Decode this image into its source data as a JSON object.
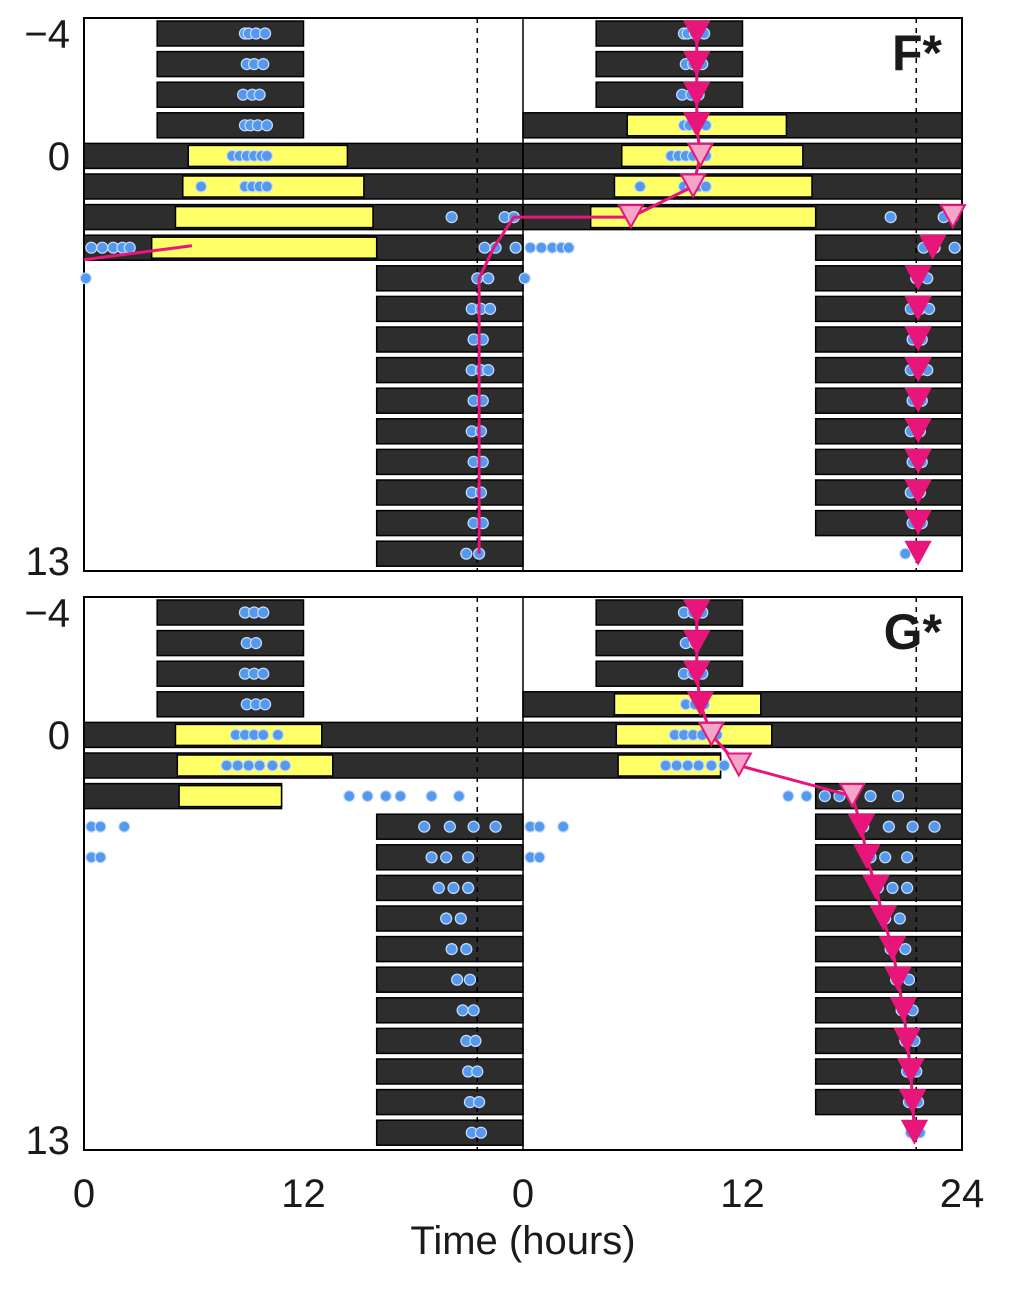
{
  "chart_data": [
    {
      "type": "actogram",
      "panel_label": "F*",
      "xlabel": "Time (hours)",
      "y_tick_labels": [
        "−4",
        "0",
        "13"
      ],
      "ylim": [
        -4,
        13
      ],
      "x_tick_labels": [
        "0",
        "12",
        "0",
        "12",
        "24"
      ],
      "xlim": [
        0,
        48
      ],
      "double_plotted": true,
      "dashed_reference_hour": 21.5,
      "rows": [
        {
          "day": -4,
          "bar": [
            4,
            12
          ],
          "light": null
        },
        {
          "day": -3,
          "bar": [
            4,
            12
          ],
          "light": null
        },
        {
          "day": -2,
          "bar": [
            4,
            12
          ],
          "light": null
        },
        {
          "day": -1,
          "bar": [
            4,
            12
          ],
          "light": null
        },
        {
          "day": 0,
          "bar": [
            0,
            24
          ],
          "light": [
            5.7,
            14.4
          ]
        },
        {
          "day": 1,
          "bar": [
            0,
            24
          ],
          "light": [
            5.4,
            15.3
          ]
        },
        {
          "day": 2,
          "bar": [
            0,
            24
          ],
          "light": [
            5.0,
            15.8
          ]
        },
        {
          "day": 3,
          "bar": [
            0,
            24
          ],
          "light": [
            3.7,
            16.0
          ]
        },
        {
          "day": 4,
          "bar": [
            16,
            24
          ],
          "light": null
        },
        {
          "day": 5,
          "bar": [
            16,
            24
          ],
          "light": null
        },
        {
          "day": 6,
          "bar": [
            16,
            24
          ],
          "light": null
        },
        {
          "day": 7,
          "bar": [
            16,
            24
          ],
          "light": null
        },
        {
          "day": 8,
          "bar": [
            16,
            24
          ],
          "light": null
        },
        {
          "day": 9,
          "bar": [
            16,
            24
          ],
          "light": null
        },
        {
          "day": 10,
          "bar": [
            16,
            24
          ],
          "light": null
        },
        {
          "day": 11,
          "bar": [
            16,
            24
          ],
          "light": null
        },
        {
          "day": 12,
          "bar": [
            16,
            24
          ],
          "light": null
        },
        {
          "day": 13,
          "bar": [
            16,
            24
          ],
          "light": null
        }
      ],
      "onsets": [
        {
          "day": -4,
          "hour": 9.5
        },
        {
          "day": -3,
          "hour": 9.5
        },
        {
          "day": -2,
          "hour": 9.5
        },
        {
          "day": -1,
          "hour": 9.5
        },
        {
          "day": 0,
          "hour": 9.7,
          "open": true
        },
        {
          "day": 1,
          "hour": 9.3,
          "open": true
        },
        {
          "day": 2,
          "hour": 5.9,
          "open": true
        },
        {
          "day": 2,
          "hour": 23.5,
          "open": true
        },
        {
          "day": 3,
          "hour": 22.4
        },
        {
          "day": 4,
          "hour": 21.6
        },
        {
          "day": 5,
          "hour": 21.6
        },
        {
          "day": 6,
          "hour": 21.6
        },
        {
          "day": 7,
          "hour": 21.6
        },
        {
          "day": 8,
          "hour": 21.6
        },
        {
          "day": 9,
          "hour": 21.6
        },
        {
          "day": 10,
          "hour": 21.6
        },
        {
          "day": 11,
          "hour": 21.6
        },
        {
          "day": 12,
          "hour": 21.6
        },
        {
          "day": 13,
          "hour": 21.6
        }
      ],
      "onset_line_hours": [
        [
          33.5,
          -4
        ],
        [
          33.5,
          -3
        ],
        [
          33.5,
          -2
        ],
        [
          33.5,
          -1
        ],
        [
          33.7,
          0
        ],
        [
          33.3,
          1
        ],
        [
          29.9,
          2
        ],
        [
          23.5,
          2
        ],
        [
          22.4,
          3
        ],
        [
          21.6,
          4
        ],
        [
          21.6,
          5
        ],
        [
          21.6,
          6
        ],
        [
          21.6,
          7
        ],
        [
          21.6,
          8
        ],
        [
          21.6,
          9
        ],
        [
          21.6,
          10
        ],
        [
          21.6,
          11
        ],
        [
          21.6,
          12
        ],
        [
          21.6,
          13
        ]
      ],
      "left_stub": {
        "day": 3,
        "from_hour": 0,
        "to_hour": 5.9
      },
      "activity_points": [
        {
          "day": -4,
          "hour": 8.8
        },
        {
          "day": -4,
          "hour": 9.0
        },
        {
          "day": -4,
          "hour": 9.4
        },
        {
          "day": -4,
          "hour": 9.9
        },
        {
          "day": -3,
          "hour": 8.9
        },
        {
          "day": -3,
          "hour": 9.3
        },
        {
          "day": -3,
          "hour": 9.8
        },
        {
          "day": -2,
          "hour": 8.7
        },
        {
          "day": -2,
          "hour": 9.2
        },
        {
          "day": -2,
          "hour": 9.6
        },
        {
          "day": -1,
          "hour": 8.8
        },
        {
          "day": -1,
          "hour": 9.1
        },
        {
          "day": -1,
          "hour": 9.5
        },
        {
          "day": -1,
          "hour": 10.0
        },
        {
          "day": 0,
          "hour": 8.1
        },
        {
          "day": 0,
          "hour": 8.5
        },
        {
          "day": 0,
          "hour": 8.9
        },
        {
          "day": 0,
          "hour": 9.3
        },
        {
          "day": 0,
          "hour": 9.7
        },
        {
          "day": 0,
          "hour": 10.0
        },
        {
          "day": 1,
          "hour": 6.4
        },
        {
          "day": 1,
          "hour": 8.8
        },
        {
          "day": 1,
          "hour": 9.2
        },
        {
          "day": 1,
          "hour": 9.6
        },
        {
          "day": 1,
          "hour": 10.0
        },
        {
          "day": 2,
          "hour": 20.1
        },
        {
          "day": 2,
          "hour": 23.0
        },
        {
          "day": 2,
          "hour": 23.5
        },
        {
          "day": 3,
          "hour": 0.4
        },
        {
          "day": 3,
          "hour": 1.0
        },
        {
          "day": 3,
          "hour": 1.6
        },
        {
          "day": 3,
          "hour": 2.1
        },
        {
          "day": 3,
          "hour": 2.5
        },
        {
          "day": 3,
          "hour": 21.9
        },
        {
          "day": 3,
          "hour": 22.5
        },
        {
          "day": 3,
          "hour": 23.6
        },
        {
          "day": 4,
          "hour": 0.1
        },
        {
          "day": 4,
          "hour": 21.5
        },
        {
          "day": 4,
          "hour": 22.1
        },
        {
          "day": 5,
          "hour": 21.2
        },
        {
          "day": 5,
          "hour": 21.7
        },
        {
          "day": 5,
          "hour": 22.2
        },
        {
          "day": 6,
          "hour": 21.3
        },
        {
          "day": 6,
          "hour": 21.8
        },
        {
          "day": 7,
          "hour": 21.2
        },
        {
          "day": 7,
          "hour": 21.7
        },
        {
          "day": 7,
          "hour": 22.1
        },
        {
          "day": 8,
          "hour": 21.3
        },
        {
          "day": 8,
          "hour": 21.8
        },
        {
          "day": 9,
          "hour": 21.2
        },
        {
          "day": 9,
          "hour": 21.7
        },
        {
          "day": 10,
          "hour": 21.3
        },
        {
          "day": 10,
          "hour": 21.8
        },
        {
          "day": 11,
          "hour": 21.2
        },
        {
          "day": 11,
          "hour": 21.7
        },
        {
          "day": 12,
          "hour": 21.3
        },
        {
          "day": 12,
          "hour": 21.8
        },
        {
          "day": 13,
          "hour": 20.9
        },
        {
          "day": 13,
          "hour": 21.6
        }
      ],
      "colors": {
        "dark_bar": "#2d2d2d",
        "light_bar": "#ffff66",
        "onset_marker": "#e8157a",
        "onset_open_fill": "#f4a6c8",
        "activity": "#5599ee"
      }
    },
    {
      "type": "actogram",
      "panel_label": "G*",
      "xlabel": "Time (hours)",
      "y_tick_labels": [
        "−4",
        "0",
        "13"
      ],
      "ylim": [
        -4,
        13
      ],
      "x_tick_labels": [
        "0",
        "12",
        "0",
        "12",
        "24"
      ],
      "xlim": [
        0,
        48
      ],
      "double_plotted": true,
      "dashed_reference_hour": 21.5,
      "rows": [
        {
          "day": -4,
          "bar": [
            4,
            12
          ],
          "light": null
        },
        {
          "day": -3,
          "bar": [
            4,
            12
          ],
          "light": null
        },
        {
          "day": -2,
          "bar": [
            4,
            12
          ],
          "light": null
        },
        {
          "day": -1,
          "bar": [
            4,
            12
          ],
          "light": null
        },
        {
          "day": 0,
          "bar": [
            0,
            24
          ],
          "light": [
            5.0,
            13.0
          ]
        },
        {
          "day": 1,
          "bar": [
            0,
            24
          ],
          "light": [
            5.1,
            13.6
          ]
        },
        {
          "day": 2,
          "bar": [
            0,
            10.8
          ],
          "light": [
            5.2,
            10.8
          ]
        },
        {
          "day": 3,
          "bar": [
            16,
            24
          ],
          "light": null
        },
        {
          "day": 4,
          "bar": [
            16,
            24
          ],
          "light": null
        },
        {
          "day": 5,
          "bar": [
            16,
            24
          ],
          "light": null
        },
        {
          "day": 6,
          "bar": [
            16,
            24
          ],
          "light": null
        },
        {
          "day": 7,
          "bar": [
            16,
            24
          ],
          "light": null
        },
        {
          "day": 8,
          "bar": [
            16,
            24
          ],
          "light": null
        },
        {
          "day": 9,
          "bar": [
            16,
            24
          ],
          "light": null
        },
        {
          "day": 10,
          "bar": [
            16,
            24
          ],
          "light": null
        },
        {
          "day": 11,
          "bar": [
            16,
            24
          ],
          "light": null
        },
        {
          "day": 12,
          "bar": [
            16,
            24
          ],
          "light": null
        },
        {
          "day": 13,
          "bar": [
            16,
            24
          ],
          "light": null
        }
      ],
      "onsets": [
        {
          "day": -4,
          "hour": 9.5
        },
        {
          "day": -3,
          "hour": 9.5
        },
        {
          "day": -2,
          "hour": 9.5
        },
        {
          "day": -1,
          "hour": 9.7
        },
        {
          "day": 0,
          "hour": 10.3,
          "open": true
        },
        {
          "day": 1,
          "hour": 11.8,
          "open": true
        },
        {
          "day": 2,
          "hour": 18.0,
          "open": true
        },
        {
          "day": 3,
          "hour": 18.5
        },
        {
          "day": 4,
          "hour": 18.8
        },
        {
          "day": 5,
          "hour": 19.3
        },
        {
          "day": 6,
          "hour": 19.7
        },
        {
          "day": 7,
          "hour": 20.2
        },
        {
          "day": 8,
          "hour": 20.5
        },
        {
          "day": 9,
          "hour": 20.8
        },
        {
          "day": 10,
          "hour": 21.0
        },
        {
          "day": 11,
          "hour": 21.2
        },
        {
          "day": 12,
          "hour": 21.3
        },
        {
          "day": 13,
          "hour": 21.4
        }
      ],
      "onset_line_hours": [
        [
          33.5,
          -4
        ],
        [
          33.5,
          -3
        ],
        [
          33.5,
          -2
        ],
        [
          33.7,
          -1
        ],
        [
          34.3,
          0
        ],
        [
          35.8,
          1
        ],
        [
          42.0,
          2
        ],
        [
          42.5,
          3
        ],
        [
          42.8,
          4
        ],
        [
          43.3,
          5
        ],
        [
          43.7,
          6
        ],
        [
          44.2,
          7
        ],
        [
          44.5,
          8
        ],
        [
          44.8,
          9
        ],
        [
          45.0,
          10
        ],
        [
          45.2,
          11
        ],
        [
          45.3,
          12
        ],
        [
          45.4,
          13
        ]
      ],
      "left_stub": null,
      "activity_points": [
        {
          "day": -4,
          "hour": 8.8
        },
        {
          "day": -4,
          "hour": 9.3
        },
        {
          "day": -4,
          "hour": 9.8
        },
        {
          "day": -3,
          "hour": 8.9
        },
        {
          "day": -3,
          "hour": 9.4
        },
        {
          "day": -2,
          "hour": 8.8
        },
        {
          "day": -2,
          "hour": 9.3
        },
        {
          "day": -2,
          "hour": 9.8
        },
        {
          "day": -1,
          "hour": 8.9
        },
        {
          "day": -1,
          "hour": 9.4
        },
        {
          "day": -1,
          "hour": 9.9
        },
        {
          "day": 0,
          "hour": 8.3
        },
        {
          "day": 0,
          "hour": 8.8
        },
        {
          "day": 0,
          "hour": 9.3
        },
        {
          "day": 0,
          "hour": 9.8
        },
        {
          "day": 0,
          "hour": 10.6
        },
        {
          "day": 1,
          "hour": 7.8
        },
        {
          "day": 1,
          "hour": 8.4
        },
        {
          "day": 1,
          "hour": 9.0
        },
        {
          "day": 1,
          "hour": 9.6
        },
        {
          "day": 1,
          "hour": 10.3
        },
        {
          "day": 1,
          "hour": 11.0
        },
        {
          "day": 2,
          "hour": 14.5
        },
        {
          "day": 2,
          "hour": 15.5
        },
        {
          "day": 2,
          "hour": 16.5
        },
        {
          "day": 2,
          "hour": 17.3
        },
        {
          "day": 2,
          "hour": 19.0
        },
        {
          "day": 2,
          "hour": 20.5
        },
        {
          "day": 3,
          "hour": 0.4
        },
        {
          "day": 3,
          "hour": 0.9
        },
        {
          "day": 3,
          "hour": 2.2
        },
        {
          "day": 3,
          "hour": 18.6
        },
        {
          "day": 3,
          "hour": 20.0
        },
        {
          "day": 3,
          "hour": 21.3
        },
        {
          "day": 3,
          "hour": 22.5
        },
        {
          "day": 4,
          "hour": 0.4
        },
        {
          "day": 4,
          "hour": 0.9
        },
        {
          "day": 4,
          "hour": 19.0
        },
        {
          "day": 4,
          "hour": 19.8
        },
        {
          "day": 4,
          "hour": 21.0
        },
        {
          "day": 5,
          "hour": 19.4
        },
        {
          "day": 5,
          "hour": 20.2
        },
        {
          "day": 5,
          "hour": 21.0
        },
        {
          "day": 6,
          "hour": 19.8
        },
        {
          "day": 6,
          "hour": 20.6
        },
        {
          "day": 7,
          "hour": 20.1
        },
        {
          "day": 7,
          "hour": 20.9
        },
        {
          "day": 8,
          "hour": 20.4
        },
        {
          "day": 8,
          "hour": 21.1
        },
        {
          "day": 9,
          "hour": 20.7
        },
        {
          "day": 9,
          "hour": 21.3
        },
        {
          "day": 10,
          "hour": 20.9
        },
        {
          "day": 10,
          "hour": 21.4
        },
        {
          "day": 11,
          "hour": 21.0
        },
        {
          "day": 11,
          "hour": 21.5
        },
        {
          "day": 12,
          "hour": 21.1
        },
        {
          "day": 12,
          "hour": 21.6
        },
        {
          "day": 13,
          "hour": 21.2
        },
        {
          "day": 13,
          "hour": 21.7
        }
      ],
      "colors": {
        "dark_bar": "#2d2d2d",
        "light_bar": "#ffff66",
        "onset_marker": "#e8157a",
        "onset_open_fill": "#f4a6c8",
        "activity": "#5599ee"
      }
    }
  ]
}
